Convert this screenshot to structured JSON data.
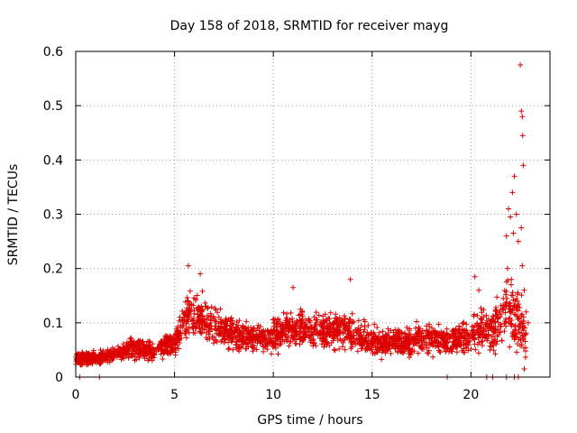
{
  "chart_data": {
    "type": "scatter",
    "title": "Day 158 of 2018, SRMTID for receiver mayg",
    "xlabel": "GPS time / hours",
    "ylabel": "SRMTID / TECUs",
    "xlim": [
      0,
      24
    ],
    "ylim": [
      0,
      0.6
    ],
    "xticks": [
      "0",
      "5",
      "10",
      "15",
      "20"
    ],
    "xtick_values": [
      0,
      5,
      10,
      15,
      20
    ],
    "yticks": [
      "0",
      "0.1",
      "0.2",
      "0.3",
      "0.4",
      "0.5",
      "0.6"
    ],
    "ytick_values": [
      0,
      0.1,
      0.2,
      0.3,
      0.4,
      0.5,
      0.6
    ],
    "grid": true,
    "marker": "plus",
    "series_color": "#dd0000",
    "series": [
      {
        "name": "SRMTID",
        "profile": [
          {
            "t": 0.0,
            "mean": 0.033,
            "spread": 0.013
          },
          {
            "t": 1.0,
            "mean": 0.035,
            "spread": 0.012
          },
          {
            "t": 2.0,
            "mean": 0.042,
            "spread": 0.014
          },
          {
            "t": 3.0,
            "mean": 0.055,
            "spread": 0.022
          },
          {
            "t": 4.0,
            "mean": 0.045,
            "spread": 0.018
          },
          {
            "t": 5.0,
            "mean": 0.065,
            "spread": 0.025
          },
          {
            "t": 5.7,
            "mean": 0.115,
            "spread": 0.045
          },
          {
            "t": 6.5,
            "mean": 0.11,
            "spread": 0.04
          },
          {
            "t": 7.5,
            "mean": 0.085,
            "spread": 0.03
          },
          {
            "t": 8.5,
            "mean": 0.075,
            "spread": 0.028
          },
          {
            "t": 9.5,
            "mean": 0.07,
            "spread": 0.028
          },
          {
            "t": 10.5,
            "mean": 0.085,
            "spread": 0.035
          },
          {
            "t": 11.5,
            "mean": 0.09,
            "spread": 0.032
          },
          {
            "t": 12.5,
            "mean": 0.085,
            "spread": 0.03
          },
          {
            "t": 13.5,
            "mean": 0.09,
            "spread": 0.035
          },
          {
            "t": 14.5,
            "mean": 0.075,
            "spread": 0.03
          },
          {
            "t": 15.5,
            "mean": 0.06,
            "spread": 0.025
          },
          {
            "t": 16.5,
            "mean": 0.065,
            "spread": 0.028
          },
          {
            "t": 17.5,
            "mean": 0.07,
            "spread": 0.03
          },
          {
            "t": 18.5,
            "mean": 0.065,
            "spread": 0.028
          },
          {
            "t": 19.5,
            "mean": 0.07,
            "spread": 0.03
          },
          {
            "t": 20.3,
            "mean": 0.09,
            "spread": 0.04
          },
          {
            "t": 21.0,
            "mean": 0.08,
            "spread": 0.04
          },
          {
            "t": 21.8,
            "mean": 0.12,
            "spread": 0.07
          },
          {
            "t": 22.5,
            "mean": 0.1,
            "spread": 0.06
          },
          {
            "t": 22.8,
            "mean": 0.07,
            "spread": 0.04
          }
        ],
        "time_range": [
          0,
          22.8
        ],
        "points_per_hour": 110,
        "highlights": [
          [
            22.5,
            0.575
          ],
          [
            22.55,
            0.49
          ],
          [
            22.6,
            0.48
          ],
          [
            22.62,
            0.445
          ],
          [
            22.65,
            0.39
          ],
          [
            22.2,
            0.37
          ],
          [
            22.1,
            0.34
          ],
          [
            22.3,
            0.3
          ],
          [
            22.55,
            0.275
          ],
          [
            21.9,
            0.31
          ],
          [
            22.0,
            0.295
          ],
          [
            21.8,
            0.26
          ],
          [
            22.15,
            0.265
          ],
          [
            22.4,
            0.25
          ],
          [
            22.6,
            0.205
          ],
          [
            21.85,
            0.2
          ],
          [
            22.05,
            0.18
          ],
          [
            5.7,
            0.205
          ],
          [
            6.3,
            0.19
          ],
          [
            11.0,
            0.165
          ],
          [
            13.9,
            0.18
          ],
          [
            20.2,
            0.185
          ],
          [
            20.4,
            0.16
          ],
          [
            22.7,
            0.16
          ],
          [
            22.35,
            0.14
          ],
          [
            22.8,
            0.12
          ],
          [
            22.9,
            0.1
          ],
          [
            22.7,
            0.015
          ],
          [
            0.2,
            0.0
          ],
          [
            1.2,
            0.0
          ],
          [
            18.8,
            0.0
          ],
          [
            20.8,
            0.0
          ],
          [
            21.1,
            0.0
          ],
          [
            21.8,
            0.0
          ],
          [
            22.2,
            0.0
          ],
          [
            22.4,
            0.0
          ]
        ]
      }
    ]
  }
}
